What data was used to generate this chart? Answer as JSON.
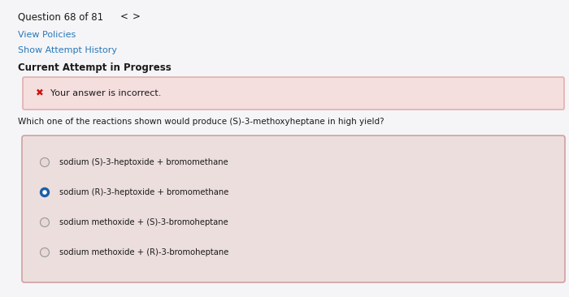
{
  "title_text": "Question 68 of 81",
  "nav_left": "<",
  "nav_right": ">",
  "link1": "View Policies",
  "link2": "Show Attempt History",
  "bold_label": "Current Attempt in Progress",
  "error_icon": "✖",
  "error_msg": "Your answer is incorrect.",
  "question": "Which one of the reactions shown would produce (S)-3-methoxyheptane in high yield?",
  "options": [
    "sodium (S)-3-heptoxide + bromomethane",
    "sodium (R)-3-heptoxide + bromomethane",
    "sodium methoxide + (S)-3-bromoheptane",
    "sodium methoxide + (R)-3-bromoheptane"
  ],
  "selected_index": 1,
  "bg_color": "#e8e8ea",
  "page_bg": "#f5f5f7",
  "error_bg": "#f5dede",
  "error_border": "#e0b0b0",
  "answer_box_bg": "#eddede",
  "answer_box_border": "#d0a0a0",
  "link_color": "#2878b8",
  "text_color": "#1a1a1a",
  "error_icon_color": "#cc1111",
  "selected_radio_fill": "#1a5fa8",
  "selected_radio_border": "#1a5fa8",
  "unselected_radio_border": "#999999",
  "unselected_radio_fill": "#e8d8d8",
  "title_fontsize": 8.5,
  "nav_fontsize": 8.5,
  "link_fontsize": 8.0,
  "bold_label_fontsize": 8.5,
  "error_fontsize": 8.0,
  "question_fontsize": 7.5,
  "option_fontsize": 7.2
}
